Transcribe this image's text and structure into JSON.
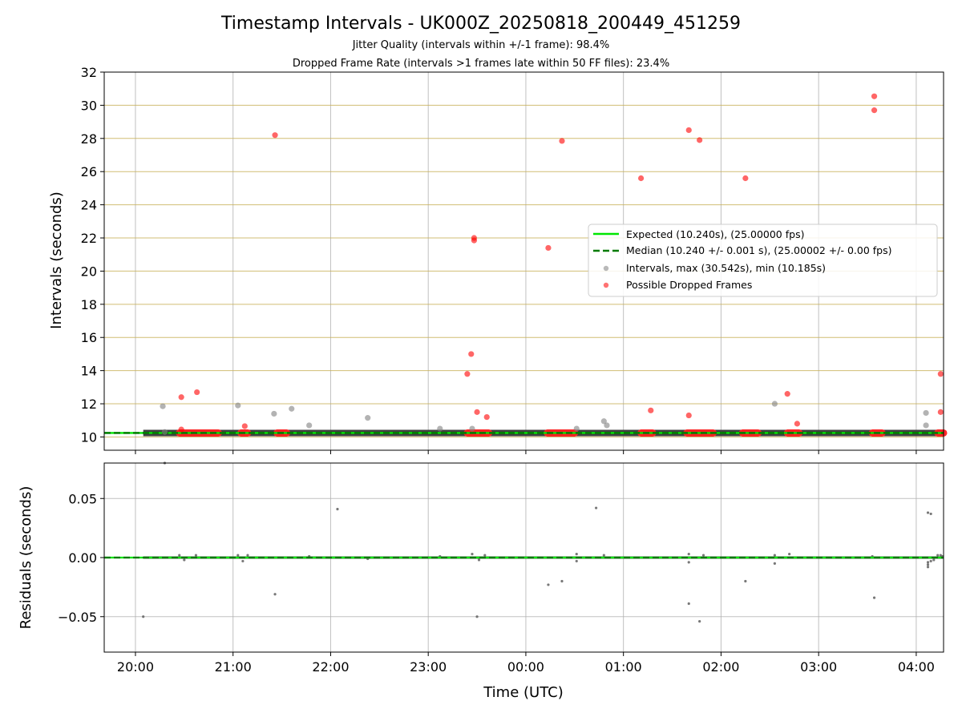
{
  "chart_data": [
    {
      "type": "scatter",
      "title": "Timestamp Intervals - UK000Z_20250818_200449_451259",
      "subtitles": [
        "Jitter Quality (intervals within +/-1 frame): 98.4%",
        "Dropped Frame Rate (intervals >1 frames late within 50 FF files): 23.4%"
      ],
      "xlabel": "",
      "ylabel": "Intervals (seconds)",
      "x_unit": "hours since 20:00 UTC",
      "xlim": [
        -0.32,
        8.28
      ],
      "ylim": [
        9.2,
        32
      ],
      "yticks": [
        10,
        12,
        14,
        16,
        18,
        20,
        22,
        24,
        26,
        28,
        30,
        32
      ],
      "grid": true,
      "legend_position": "center-right",
      "expected_line": {
        "name": "Expected (10.240s), (25.00000 fps)",
        "value": 10.24,
        "color": "#00e600"
      },
      "median_line": {
        "name": "Median (10.240 +/- 0.001 s), (25.00002 +/- 0.00 fps)",
        "value": 10.24,
        "color": "#007a00"
      },
      "series": [
        {
          "name": "Intervals, max (30.542s), min (10.185s)",
          "color": "#808080",
          "baseline_segment": {
            "x": [
              0.08,
              8.28
            ],
            "y": 10.24
          },
          "points": [
            {
              "x": 0.28,
              "y": 11.85
            },
            {
              "x": 0.3,
              "y": 10.3
            },
            {
              "x": 1.05,
              "y": 11.9
            },
            {
              "x": 1.42,
              "y": 11.4
            },
            {
              "x": 1.6,
              "y": 11.7
            },
            {
              "x": 1.78,
              "y": 10.7
            },
            {
              "x": 2.38,
              "y": 11.15
            },
            {
              "x": 3.12,
              "y": 10.5
            },
            {
              "x": 3.45,
              "y": 10.5
            },
            {
              "x": 4.52,
              "y": 10.5
            },
            {
              "x": 4.8,
              "y": 10.95
            },
            {
              "x": 4.83,
              "y": 10.7
            },
            {
              "x": 6.55,
              "y": 12.0
            },
            {
              "x": 8.1,
              "y": 11.45
            },
            {
              "x": 8.1,
              "y": 10.7
            }
          ]
        },
        {
          "name": "Possible Dropped Frames",
          "color": "#ff0000",
          "clusters": [
            {
              "x0": 0.45,
              "x1": 0.85
            },
            {
              "x0": 1.08,
              "x1": 1.15
            },
            {
              "x0": 1.45,
              "x1": 1.55
            },
            {
              "x0": 3.4,
              "x1": 3.62
            },
            {
              "x0": 4.22,
              "x1": 4.5
            },
            {
              "x0": 5.18,
              "x1": 5.3
            },
            {
              "x0": 5.65,
              "x1": 5.92
            },
            {
              "x0": 6.22,
              "x1": 6.38
            },
            {
              "x0": 6.68,
              "x1": 6.8
            },
            {
              "x0": 7.55,
              "x1": 7.65
            },
            {
              "x0": 8.22,
              "x1": 8.28
            }
          ],
          "points": [
            {
              "x": 0.47,
              "y": 12.4
            },
            {
              "x": 0.47,
              "y": 10.45
            },
            {
              "x": 0.63,
              "y": 12.7
            },
            {
              "x": 1.12,
              "y": 10.65
            },
            {
              "x": 1.43,
              "y": 28.2
            },
            {
              "x": 3.4,
              "y": 13.8
            },
            {
              "x": 3.44,
              "y": 15.0
            },
            {
              "x": 3.47,
              "y": 22.0
            },
            {
              "x": 3.47,
              "y": 21.85
            },
            {
              "x": 3.5,
              "y": 11.5
            },
            {
              "x": 3.6,
              "y": 11.2
            },
            {
              "x": 4.23,
              "y": 21.4
            },
            {
              "x": 4.37,
              "y": 27.85
            },
            {
              "x": 5.18,
              "y": 25.6
            },
            {
              "x": 5.28,
              "y": 11.6
            },
            {
              "x": 5.67,
              "y": 28.5
            },
            {
              "x": 5.67,
              "y": 11.3
            },
            {
              "x": 5.78,
              "y": 27.9
            },
            {
              "x": 6.25,
              "y": 25.6
            },
            {
              "x": 6.68,
              "y": 12.6
            },
            {
              "x": 6.78,
              "y": 10.8
            },
            {
              "x": 7.57,
              "y": 30.54
            },
            {
              "x": 7.57,
              "y": 29.7
            },
            {
              "x": 8.25,
              "y": 13.8
            },
            {
              "x": 8.25,
              "y": 11.5
            }
          ]
        }
      ]
    },
    {
      "type": "scatter",
      "title": "",
      "xlabel": "Time (UTC)",
      "ylabel": "Residuals (seconds)",
      "x_unit": "hours since 20:00 UTC",
      "xlim": [
        -0.32,
        8.28
      ],
      "ylim": [
        -0.08,
        0.08
      ],
      "yticks": [
        -0.05,
        0.0,
        0.05
      ],
      "ytick_labels": [
        "−0.05",
        "0.00",
        "0.05"
      ],
      "xticks": [
        0,
        1,
        2,
        3,
        4,
        5,
        6,
        7,
        8
      ],
      "xtick_labels": [
        "20:00",
        "21:00",
        "22:00",
        "23:00",
        "00:00",
        "01:00",
        "02:00",
        "03:00",
        "04:00"
      ],
      "grid": true,
      "zero_line": {
        "value": 0.0
      },
      "series": [
        {
          "name": "",
          "color": "#606060",
          "points": [
            {
              "x": 0.08,
              "y": -0.05
            },
            {
              "x": 0.3,
              "y": 0.08
            },
            {
              "x": 2.07,
              "y": 0.041
            },
            {
              "x": 1.43,
              "y": -0.031
            },
            {
              "x": 3.5,
              "y": -0.05
            },
            {
              "x": 4.23,
              "y": -0.023
            },
            {
              "x": 4.37,
              "y": -0.02
            },
            {
              "x": 4.72,
              "y": 0.042
            },
            {
              "x": 5.67,
              "y": -0.039
            },
            {
              "x": 5.78,
              "y": -0.054
            },
            {
              "x": 6.25,
              "y": -0.02
            },
            {
              "x": 7.57,
              "y": -0.034
            },
            {
              "x": 8.12,
              "y": 0.038
            },
            {
              "x": 8.15,
              "y": 0.037
            },
            {
              "x": 8.12,
              "y": -0.008
            },
            {
              "x": 8.12,
              "y": -0.006
            },
            {
              "x": 8.12,
              "y": -0.004
            },
            {
              "x": 8.15,
              "y": -0.003
            },
            {
              "x": 8.18,
              "y": -0.002
            },
            {
              "x": 8.22,
              "y": 0.002
            },
            {
              "x": 8.25,
              "y": 0.002
            },
            {
              "x": 8.27,
              "y": 0.001
            },
            {
              "x": 0.45,
              "y": 0.002
            },
            {
              "x": 0.5,
              "y": -0.002
            },
            {
              "x": 0.62,
              "y": 0.002
            },
            {
              "x": 1.05,
              "y": 0.002
            },
            {
              "x": 1.1,
              "y": -0.003
            },
            {
              "x": 1.15,
              "y": 0.002
            },
            {
              "x": 3.45,
              "y": 0.003
            },
            {
              "x": 3.52,
              "y": -0.002
            },
            {
              "x": 3.58,
              "y": 0.002
            },
            {
              "x": 4.52,
              "y": 0.003
            },
            {
              "x": 4.52,
              "y": -0.003
            },
            {
              "x": 4.8,
              "y": 0.002
            },
            {
              "x": 5.67,
              "y": 0.003
            },
            {
              "x": 5.67,
              "y": -0.004
            },
            {
              "x": 5.82,
              "y": 0.002
            },
            {
              "x": 6.55,
              "y": 0.002
            },
            {
              "x": 6.55,
              "y": -0.005
            },
            {
              "x": 6.7,
              "y": 0.003
            },
            {
              "x": 7.55,
              "y": 0.001
            },
            {
              "x": 3.12,
              "y": 0.001
            },
            {
              "x": 2.38,
              "y": -0.001
            },
            {
              "x": 1.78,
              "y": 0.001
            }
          ]
        }
      ]
    }
  ]
}
